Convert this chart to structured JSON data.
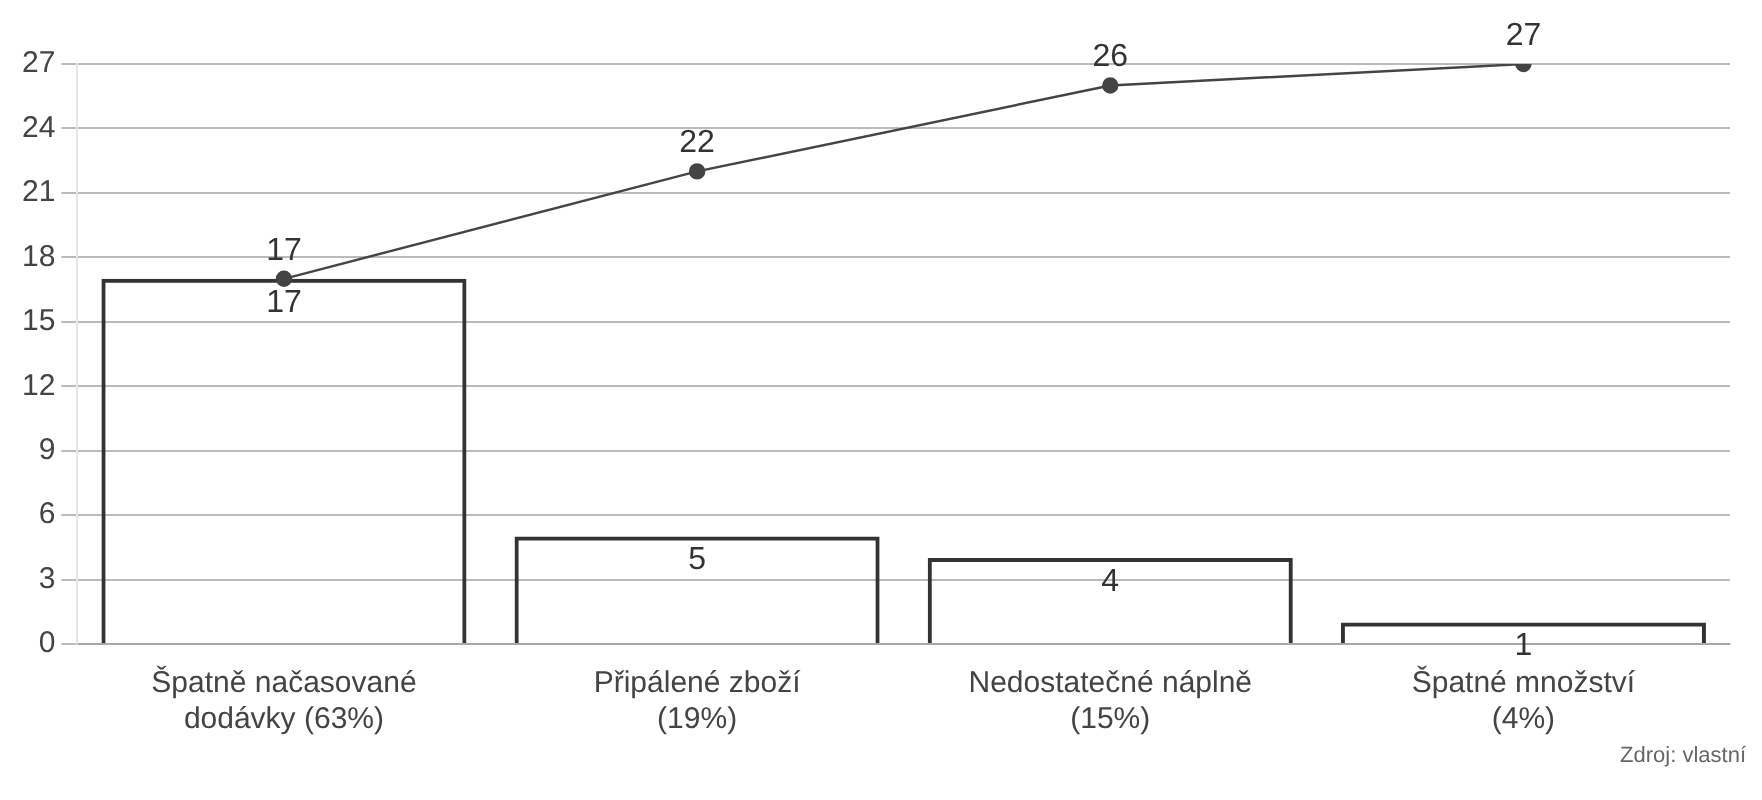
{
  "chart_data": {
    "type": "bar",
    "categories": [
      "Špatně načasované dodávky (63%)",
      "Připálené zboží (19%)",
      "Nedostatečné náplně (15%)",
      "Špatné množství (4%)"
    ],
    "series": [
      {
        "color": "#333333",
        "values": [
          17,
          5,
          4,
          1
        ]
      },
      {
        "type": "line",
        "color": "#444444",
        "values": [
          17,
          22,
          26,
          27
        ]
      }
    ],
    "ylim": [
      0,
      27
    ],
    "yticks": [
      0,
      3,
      6,
      9,
      12,
      15,
      18,
      21,
      24,
      27
    ],
    "grid": "y",
    "legend": false,
    "marker": "circle",
    "line_style": "solid",
    "data_labels": true,
    "annotations": [
      "Zdroj: vlastní"
    ]
  }
}
